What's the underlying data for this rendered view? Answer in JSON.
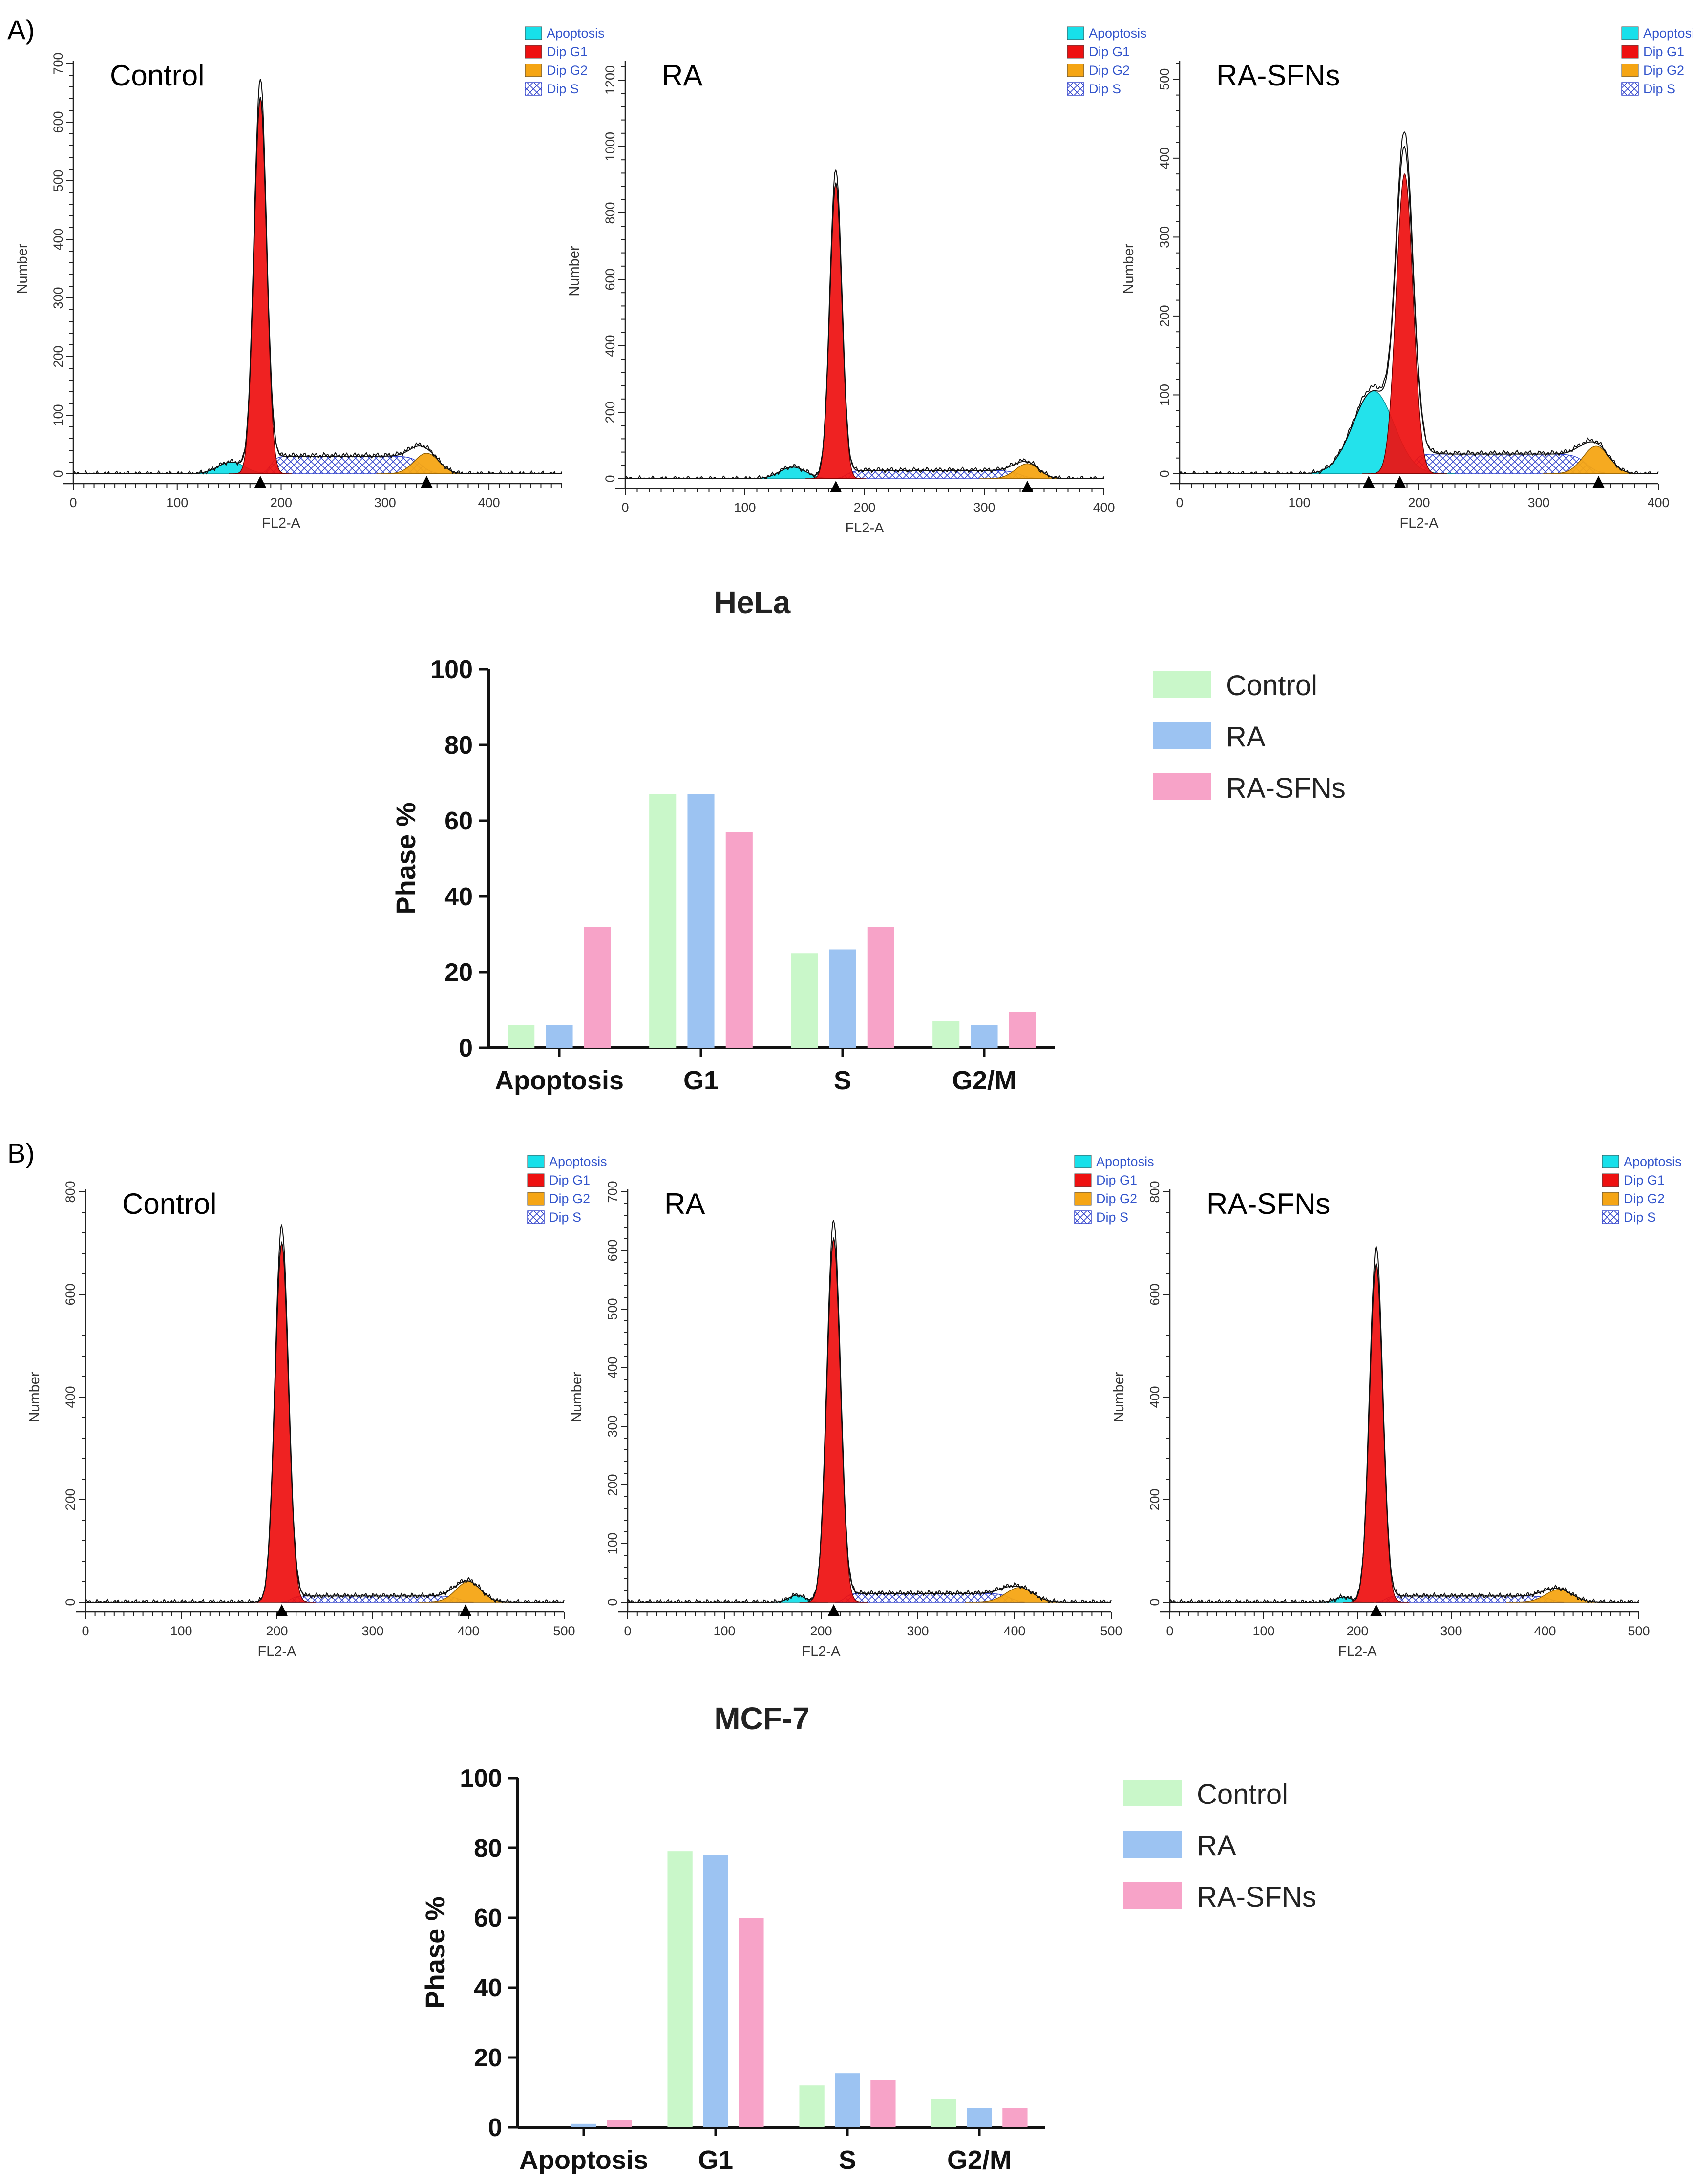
{
  "panels": [
    {
      "label": "A)",
      "cell_line": "HeLa",
      "histograms": [
        {
          "title": "Control",
          "xlabel": "FL2-A",
          "ylabel": "Number",
          "xlim": [
            0,
            470
          ],
          "ylim": [
            0,
            700
          ],
          "xticks": [
            0,
            100,
            200,
            300,
            400
          ],
          "yticks": [
            0,
            100,
            200,
            300,
            400,
            500,
            600,
            700
          ],
          "apoptosis": {
            "mu": 152,
            "sigma": 13,
            "amp": 20
          },
          "g1": {
            "mu": 180,
            "sigma": 6,
            "amp": 640
          },
          "s": {
            "from": 190,
            "to": 335,
            "level": 30
          },
          "g2": {
            "mu": 340,
            "sigma": 12,
            "amp": 35
          },
          "peak_markers": [
            180,
            340
          ]
        },
        {
          "title": "RA",
          "xlabel": "FL2-A",
          "ylabel": "Number",
          "xlim": [
            0,
            400
          ],
          "ylim": [
            0,
            1250
          ],
          "xticks": [
            0,
            100,
            200,
            300,
            400
          ],
          "yticks": [
            0,
            200,
            400,
            600,
            800,
            1000,
            1200
          ],
          "apoptosis": {
            "mu": 140,
            "sigma": 11,
            "amp": 35
          },
          "g1": {
            "mu": 176,
            "sigma": 5,
            "amp": 890
          },
          "s": {
            "from": 185,
            "to": 330,
            "level": 25
          },
          "g2": {
            "mu": 336,
            "sigma": 10,
            "amp": 45
          },
          "peak_markers": [
            176,
            336
          ]
        },
        {
          "title": "RA-SFNs",
          "xlabel": "FL2-A",
          "ylabel": "Number",
          "xlim": [
            0,
            400
          ],
          "ylim": [
            0,
            520
          ],
          "xticks": [
            0,
            100,
            200,
            300,
            400
          ],
          "yticks": [
            0,
            100,
            200,
            300,
            400,
            500
          ],
          "apoptosis": {
            "mu": 162,
            "sigma": 17,
            "amp": 105
          },
          "g1": {
            "mu": 188,
            "sigma": 7,
            "amp": 380
          },
          "s": {
            "from": 195,
            "to": 340,
            "level": 25
          },
          "g2": {
            "mu": 348,
            "sigma": 11,
            "amp": 35
          },
          "peak_markers": [
            158,
            184,
            350
          ]
        }
      ],
      "legend": [
        "Apoptosis",
        "Dip G1",
        "Dip G2",
        "Dip S"
      ],
      "bar_chart": {
        "type": "bar",
        "title": "HeLa",
        "categories": [
          "Apoptosis",
          "G1",
          "S",
          "G2/M"
        ],
        "series": [
          {
            "name": "Control",
            "values": [
              6,
              67,
              25,
              7
            ],
            "color": "#c9f7c9"
          },
          {
            "name": "RA",
            "values": [
              6,
              67,
              26,
              6
            ],
            "color": "#9cc3f2"
          },
          {
            "name": "RA-SFNs",
            "values": [
              32,
              57,
              32,
              9.5
            ],
            "color": "#f7a3c8"
          }
        ],
        "ylabel": "Phase %",
        "ylim": [
          0,
          100
        ],
        "yticks": [
          0,
          20,
          40,
          60,
          80,
          100
        ]
      }
    },
    {
      "label": "B)",
      "cell_line": "MCF-7",
      "histograms": [
        {
          "title": "Control",
          "xlabel": "FL2-A",
          "ylabel": "Number",
          "xlim": [
            0,
            500
          ],
          "ylim": [
            0,
            800
          ],
          "xticks": [
            0,
            100,
            200,
            300,
            400,
            500
          ],
          "yticks": [
            0,
            200,
            400,
            600,
            800
          ],
          "apoptosis": {
            "mu": 170,
            "sigma": 8,
            "amp": 0
          },
          "g1": {
            "mu": 205,
            "sigma": 7,
            "amp": 700
          },
          "s": {
            "from": 215,
            "to": 390,
            "level": 12
          },
          "g2": {
            "mu": 400,
            "sigma": 13,
            "amp": 40
          },
          "peak_markers": [
            205,
            397
          ]
        },
        {
          "title": "RA",
          "xlabel": "FL2-A",
          "ylabel": "Number",
          "xlim": [
            0,
            500
          ],
          "ylim": [
            0,
            700
          ],
          "xticks": [
            0,
            100,
            200,
            300,
            400,
            500
          ],
          "yticks": [
            0,
            100,
            200,
            300,
            400,
            500,
            600,
            700
          ],
          "apoptosis": {
            "mu": 175,
            "sigma": 8,
            "amp": 12
          },
          "g1": {
            "mu": 213,
            "sigma": 7,
            "amp": 620
          },
          "s": {
            "from": 225,
            "to": 395,
            "level": 15
          },
          "g2": {
            "mu": 405,
            "sigma": 14,
            "amp": 25
          },
          "peak_markers": [
            213
          ]
        },
        {
          "title": "RA-SFNs",
          "xlabel": "FL2-A",
          "ylabel": "Number",
          "xlim": [
            0,
            500
          ],
          "ylim": [
            0,
            800
          ],
          "xticks": [
            0,
            100,
            200,
            300,
            400,
            500
          ],
          "yticks": [
            0,
            200,
            400,
            600,
            800
          ],
          "apoptosis": {
            "mu": 185,
            "sigma": 8,
            "amp": 10
          },
          "g1": {
            "mu": 220,
            "sigma": 7,
            "amp": 660
          },
          "s": {
            "from": 230,
            "to": 405,
            "level": 12
          },
          "g2": {
            "mu": 415,
            "sigma": 14,
            "amp": 25
          },
          "peak_markers": [
            220
          ]
        }
      ],
      "legend": [
        "Apoptosis",
        "Dip G1",
        "Dip G2",
        "Dip S"
      ],
      "bar_chart": {
        "type": "bar",
        "title": "MCF-7",
        "categories": [
          "Apoptosis",
          "G1",
          "S",
          "G2/M"
        ],
        "series": [
          {
            "name": "Control",
            "values": [
              0,
              79,
              12,
              8
            ],
            "color": "#c9f7c9"
          },
          {
            "name": "RA",
            "values": [
              1,
              78,
              15.5,
              5.5
            ],
            "color": "#9cc3f2"
          },
          {
            "name": "RA-SFNs",
            "values": [
              2,
              60,
              13.5,
              5.5
            ],
            "color": "#f7a3c8"
          }
        ],
        "ylabel": "Phase %",
        "ylim": [
          0,
          100
        ],
        "yticks": [
          0,
          20,
          40,
          60,
          80,
          100
        ]
      }
    }
  ],
  "legend_colors": {
    "Apoptosis": "#17e0ea",
    "Dip G1": "#ee1111",
    "Dip G2": "#f5a514",
    "Dip S": "#4455dd"
  }
}
